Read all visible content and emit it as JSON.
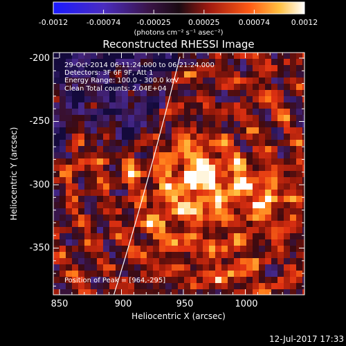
{
  "colorbar": {
    "ticks": [
      "-0.0012",
      "-0.00074",
      "-0.00025",
      "0.00025",
      "0.00074",
      "0.0012"
    ],
    "unit_label": "(photons cm⁻² s⁻¹ asec⁻²)"
  },
  "plot": {
    "title": "Reconstructed RHESSI Image",
    "xlabel": "Heliocentric X (arcsec)",
    "ylabel": "Heliocentric Y (arcsec)",
    "xticks": [
      "850",
      "900",
      "950",
      "1000"
    ],
    "yticks": [
      "-200",
      "-250",
      "-300",
      "-350"
    ]
  },
  "annotations": {
    "time_range": "29-Oct-2014 06:11:24.000 to 06:21:24.000",
    "detectors": "Detectors: 3F 6F 9F, Att 1",
    "energy_range": "Energy Range: 100.0 - 300.0 keV",
    "clean_counts": "Clean     Total counts: 2.04E+04",
    "peak_position": "Position of Peak = [964,-295]"
  },
  "footer": {
    "date": "12-Jul-2017 17:33"
  },
  "colors": {
    "background": "#000000",
    "colormap": [
      "#1a1aff",
      "#5a2c9c",
      "#2a1032",
      "#8c1c10",
      "#e8301a",
      "#ff9a1a",
      "#ffffff"
    ]
  },
  "image_data": {
    "x_range_arcsec": [
      845,
      1035
    ],
    "y_range_arcsec": [
      -388,
      -195
    ],
    "limb_visible": true,
    "peak_arcsec": [
      964,
      -295
    ]
  }
}
